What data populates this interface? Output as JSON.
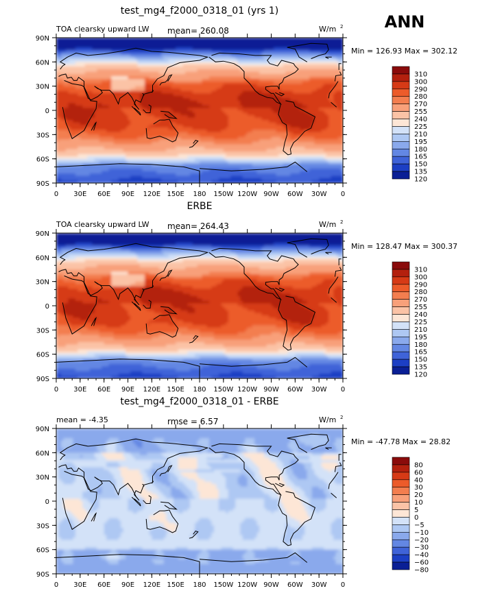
{
  "header": {
    "season": "ANN"
  },
  "chart_data": [
    {
      "type": "heatmap",
      "title": "test_mg4_f2000_0318_01 (yrs 1)",
      "left_label": "TOA clearsky upward LW",
      "mean_text": "mean= 260.08",
      "rmse_text": "",
      "units": "W/m",
      "units_sup": "2",
      "minmax_text": "Min = 126.93 Max = 302.12",
      "min": 126.93,
      "max": 302.12,
      "mean": 260.08,
      "kind": "model",
      "levels": [
        "310",
        "300",
        "290",
        "280",
        "270",
        "255",
        "240",
        "225",
        "210",
        "195",
        "180",
        "165",
        "150",
        "135",
        "120"
      ],
      "colors": [
        "#8a0b0b",
        "#b3200e",
        "#d63a16",
        "#ec5b2a",
        "#f37e4f",
        "#f8a07a",
        "#fbc3a6",
        "#fde6d6",
        "#d3e2f8",
        "#aec8f3",
        "#8aa9ec",
        "#6387e3",
        "#3f63d8",
        "#1c3fc4",
        "#0a1f95"
      ],
      "lat_ticks": [
        "90N",
        "60N",
        "30N",
        "0",
        "30S",
        "60S",
        "90S"
      ],
      "lon_ticks": [
        "0",
        "30E",
        "60E",
        "90E",
        "120E",
        "150E",
        "180",
        "150W",
        "120W",
        "90W",
        "60W",
        "30W",
        "0"
      ]
    },
    {
      "type": "heatmap",
      "title": "ERBE",
      "left_label": "TOA clearsky upward LW",
      "mean_text": "mean= 264.43",
      "rmse_text": "",
      "units": "W/m",
      "units_sup": "2",
      "minmax_text": "Min = 128.47 Max = 300.37",
      "min": 128.47,
      "max": 300.37,
      "mean": 264.43,
      "kind": "obs",
      "levels": [
        "310",
        "300",
        "290",
        "280",
        "270",
        "255",
        "240",
        "225",
        "210",
        "195",
        "180",
        "165",
        "150",
        "135",
        "120"
      ],
      "colors": [
        "#8a0b0b",
        "#b3200e",
        "#d63a16",
        "#ec5b2a",
        "#f37e4f",
        "#f8a07a",
        "#fbc3a6",
        "#fde6d6",
        "#d3e2f8",
        "#aec8f3",
        "#8aa9ec",
        "#6387e3",
        "#3f63d8",
        "#1c3fc4",
        "#0a1f95"
      ],
      "lat_ticks": [
        "90N",
        "60N",
        "30N",
        "0",
        "30S",
        "60S",
        "90S"
      ],
      "lon_ticks": [
        "0",
        "30E",
        "60E",
        "90E",
        "120E",
        "150E",
        "180",
        "150W",
        "120W",
        "90W",
        "60W",
        "30W",
        "0"
      ]
    },
    {
      "type": "heatmap",
      "title": "test_mg4_f2000_0318_01 - ERBE",
      "left_label": "mean =    -4.35",
      "mean_text": "rmse =    6.57",
      "rmse_text": "",
      "units": "W/m",
      "units_sup": "2",
      "minmax_text": "Min = -47.78 Max =  28.82",
      "min": -47.78,
      "max": 28.82,
      "mean": -4.35,
      "rmse": 6.57,
      "kind": "diff",
      "levels": [
        "80",
        "60",
        "40",
        "30",
        "20",
        "10",
        "5",
        "0",
        "−5",
        "−10",
        "−20",
        "−30",
        "−40",
        "−60",
        "−80"
      ],
      "colors": [
        "#8a0b0b",
        "#b3200e",
        "#d63a16",
        "#ec5b2a",
        "#f37e4f",
        "#f8a07a",
        "#fbc3a6",
        "#fde6d6",
        "#d3e2f8",
        "#aec8f3",
        "#8aa9ec",
        "#6387e3",
        "#3f63d8",
        "#1c3fc4",
        "#0a1f95"
      ],
      "lat_ticks": [
        "90N",
        "60N",
        "30N",
        "0",
        "30S",
        "60S",
        "90S"
      ],
      "lon_ticks": [
        "0",
        "30E",
        "60E",
        "90E",
        "120E",
        "150E",
        "180",
        "150W",
        "120W",
        "90W",
        "60W",
        "30W",
        "0"
      ]
    }
  ]
}
